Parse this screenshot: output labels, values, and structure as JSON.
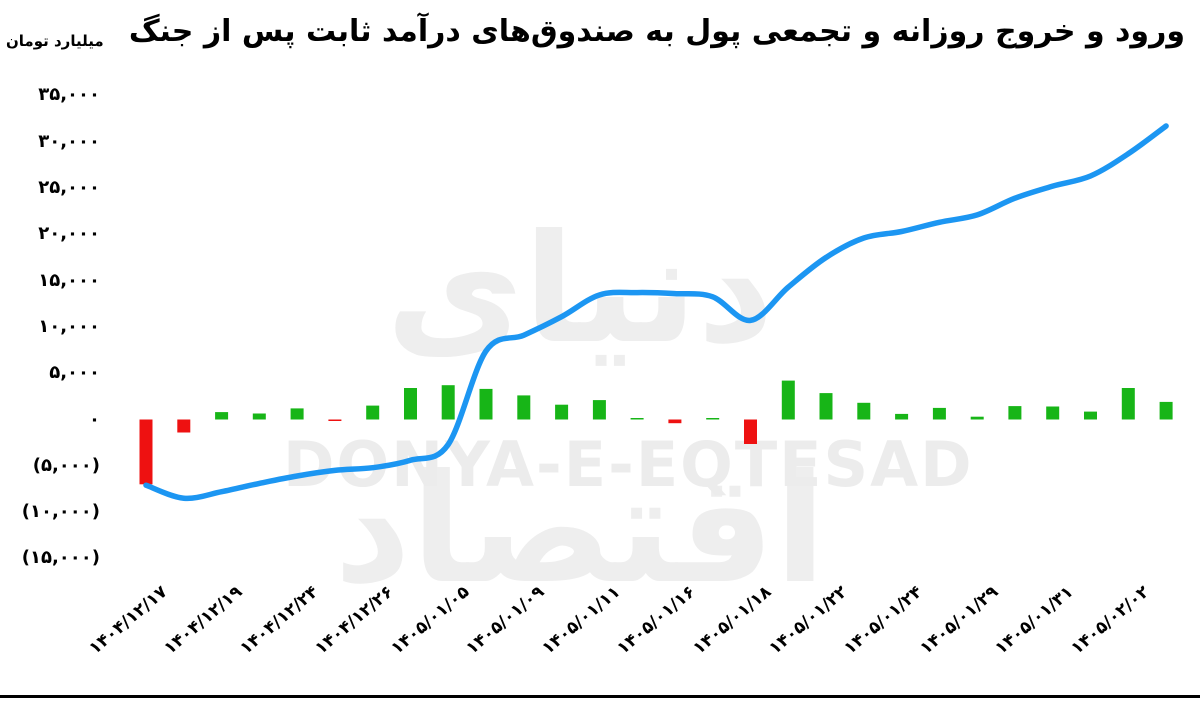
{
  "title": "ورود و خروج روزانه و تجمعی پول به صندوق‌های درآمد ثابت پس از جنگ",
  "unit_label": "میلیارد تومان",
  "watermark": {
    "persian": "دنیای اقتصاد",
    "latin": "DONYA-E-EQTESAD"
  },
  "colors": {
    "line": "#1c96f2",
    "positive_bar": "#17b517",
    "negative_bar": "#ee1111",
    "watermark": "#ececec",
    "text": "#000000",
    "background": "#ffffff"
  },
  "y_axis": {
    "min": -15000,
    "max": 35000,
    "tick_step": 5000,
    "ticks": [
      {
        "value": 35000,
        "label": "۳۵,۰۰۰"
      },
      {
        "value": 30000,
        "label": "۳۰,۰۰۰"
      },
      {
        "value": 25000,
        "label": "۲۵,۰۰۰"
      },
      {
        "value": 20000,
        "label": "۲۰,۰۰۰"
      },
      {
        "value": 15000,
        "label": "۱۵,۰۰۰"
      },
      {
        "value": 10000,
        "label": "۱۰,۰۰۰"
      },
      {
        "value": 5000,
        "label": "۵,۰۰۰"
      },
      {
        "value": 0,
        "label": "۰"
      },
      {
        "value": -5000,
        "label": "(۵,۰۰۰)"
      },
      {
        "value": -10000,
        "label": "(۱۰,۰۰۰)"
      },
      {
        "value": -15000,
        "label": "(۱۵,۰۰۰)"
      }
    ]
  },
  "chart_data": {
    "type": "bar",
    "combo": "bar+line",
    "title": "ورود و خروج روزانه و تجمعی پول به صندوق‌های درآمد ثابت پس از جنگ",
    "ylabel": "میلیارد تومان",
    "ylim": [
      -15000,
      35000
    ],
    "grid": false,
    "legend": "none",
    "x_labels": [
      "۱۴۰۴/۱۲/۱۷",
      "۱۴۰۴/۱۲/۱۹",
      "۱۴۰۴/۱۲/۲۴",
      "۱۴۰۴/۱۲/۲۶",
      "۱۴۰۵/۰۱/۰۵",
      "۱۴۰۵/۰۱/۰۹",
      "۱۴۰۵/۰۱/۱۱",
      "۱۴۰۵/۰۱/۱۶",
      "۱۴۰۵/۰۱/۱۸",
      "۱۴۰۵/۰۱/۲۲",
      "۱۴۰۵/۰۱/۲۴",
      "۱۴۰۵/۰۱/۲۹",
      "۱۴۰۵/۰۱/۳۱",
      "۱۴۰۵/۰۲/۰۲"
    ],
    "label_every": 2,
    "series": [
      {
        "name": "daily_net_flow_bars",
        "type": "bar",
        "values": [
          -7000,
          -1400,
          800,
          650,
          1200,
          -150,
          1500,
          3400,
          3700,
          3300,
          2600,
          1600,
          2100,
          150,
          -400,
          150,
          -2650,
          4200,
          2850,
          1800,
          600,
          1250,
          300,
          1450,
          1400,
          850,
          3400,
          1900
        ]
      },
      {
        "name": "cumulative_flow_line",
        "type": "line",
        "values": [
          -7100,
          -8500,
          -7800,
          -6900,
          -6100,
          -5500,
          -5200,
          -4400,
          -2700,
          7400,
          9100,
          11100,
          13450,
          13700,
          13600,
          13250,
          10700,
          14300,
          17500,
          19600,
          20300,
          21300,
          22100,
          23900,
          25200,
          26300,
          28700,
          31700
        ]
      }
    ]
  }
}
